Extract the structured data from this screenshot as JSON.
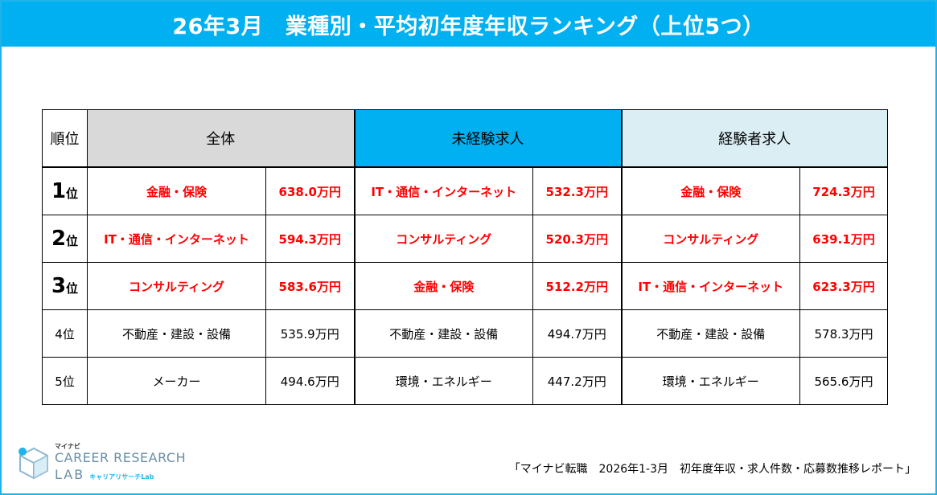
{
  "title": "26年3月　業種別・平均初年度年収ランキング（上位5つ）",
  "table": {
    "headers": {
      "rank": "順位",
      "all": "全体",
      "inexperienced": "未経験求人",
      "experienced": "経験者求人"
    },
    "rows": [
      {
        "rank_num": "1",
        "rank_suffix": "位",
        "all_ind": "金融・保険",
        "all_val": "638.0万円",
        "new_ind": "IT・通信・インターネット",
        "new_val": "532.3万円",
        "exp_ind": "金融・保険",
        "exp_val": "724.3万円"
      },
      {
        "rank_num": "2",
        "rank_suffix": "位",
        "all_ind": "IT・通信・インターネット",
        "all_val": "594.3万円",
        "new_ind": "コンサルティング",
        "new_val": "520.3万円",
        "exp_ind": "コンサルティング",
        "exp_val": "639.1万円"
      },
      {
        "rank_num": "3",
        "rank_suffix": "位",
        "all_ind": "コンサルティング",
        "all_val": "583.6万円",
        "new_ind": "金融・保険",
        "new_val": "512.2万円",
        "exp_ind": "IT・通信・インターネット",
        "exp_val": "623.3万円"
      },
      {
        "rank": "4位",
        "all_ind": "不動産・建設・設備",
        "all_val": "535.9万円",
        "new_ind": "不動産・建設・設備",
        "new_val": "494.7万円",
        "exp_ind": "不動産・建設・設備",
        "exp_val": "578.3万円"
      },
      {
        "rank": "5位",
        "all_ind": "メーカー",
        "all_val": "494.6万円",
        "new_ind": "環境・エネルギー",
        "new_val": "447.2万円",
        "exp_ind": "環境・エネルギー",
        "exp_val": "565.6万円"
      }
    ]
  },
  "logo": {
    "top": "マイナビ",
    "line1": "CAREER RESEARCH",
    "line2": "LAB",
    "sub": "キャリアリサーチLab"
  },
  "source": "「マイナビ転職　2026年1-3月　初年度年収・求人件数・応募数推移レポート」",
  "colors": {
    "accent": "#00b0f0",
    "highlight_red": "#ff0000",
    "header_all": "#d9d9d9",
    "header_experienced": "#dbeef4"
  }
}
